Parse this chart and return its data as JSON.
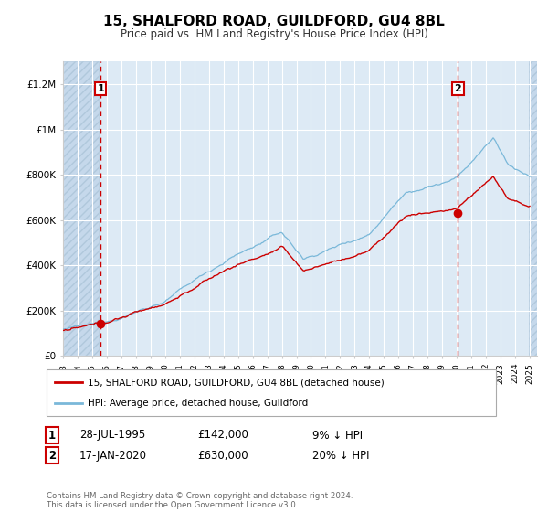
{
  "title": "15, SHALFORD ROAD, GUILDFORD, GU4 8BL",
  "subtitle": "Price paid vs. HM Land Registry's House Price Index (HPI)",
  "sale1_date": "28-JUL-1995",
  "sale1_price": 142000,
  "sale1_hpi_diff": "9% ↓ HPI",
  "sale2_date": "17-JAN-2020",
  "sale2_price": 630000,
  "sale2_hpi_diff": "20% ↓ HPI",
  "legend_label1": "15, SHALFORD ROAD, GUILDFORD, GU4 8BL (detached house)",
  "legend_label2": "HPI: Average price, detached house, Guildford",
  "footer": "Contains HM Land Registry data © Crown copyright and database right 2024.\nThis data is licensed under the Open Government Licence v3.0.",
  "hpi_color": "#7ab8d9",
  "sale_color": "#cc0000",
  "ylim": [
    0,
    1300000
  ],
  "xlim_start": 1993.0,
  "xlim_end": 2025.5,
  "bg_plot": "#ddeaf5",
  "bg_hatch": "#c5d8eb",
  "grid_color": "#ffffff",
  "vline_color": "#cc0000",
  "marker_color": "#cc0000",
  "hatch_xleft_end": 1995.42,
  "hatch_xright_start": 2024.92
}
